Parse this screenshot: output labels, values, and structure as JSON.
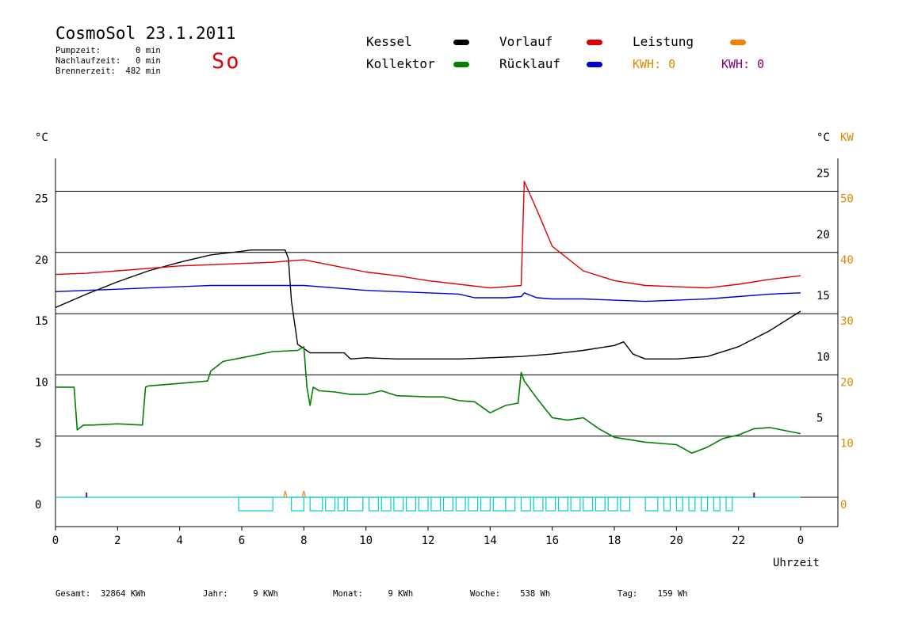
{
  "header": {
    "title": "CosmoSol 23.1.2011",
    "pumpzeit": "Pumpzeit:       0 min",
    "nachlaufzeit": "Nachlaufzeit:   0 min",
    "brennerzeit": "Brennerzeit:  482 min",
    "day": "So"
  },
  "legend": {
    "kessel": "Kessel",
    "kollektor": "Kollektor",
    "vorlauf": "Vorlauf",
    "ruecklauf": "Rücklauf",
    "leistung": "Leistung",
    "kwh1": "KWH: 0",
    "kwh2": "KWH: 0"
  },
  "footer": {
    "gesamt": "Gesamt:  32864 KWh",
    "jahr": "Jahr:     9 KWh",
    "monat": "Monat:     9 KWh",
    "woche": "Woche:    538 Wh",
    "tag": "Tag:    159 Wh"
  },
  "colors": {
    "kessel": "#000000",
    "kollektor": "#008000",
    "vorlauf": "#dd0000",
    "ruecklauf": "#0000cc",
    "leistung": "#f08000",
    "kwh2": "#800080",
    "pump": "#00cccc",
    "axis_right_kw": "#e08800"
  },
  "chart_data": {
    "type": "line",
    "xlabel": "Uhrzeit",
    "ylabel_left": "°C",
    "ylabel_right": "°C",
    "ylabel_right2": "KW",
    "xlim": [
      0,
      24
    ],
    "ylim": [
      -2,
      27.5
    ],
    "x_ticks": [
      "0",
      "2",
      "4",
      "6",
      "8",
      "10",
      "12",
      "14",
      "16",
      "18",
      "20",
      "22",
      "0"
    ],
    "y_ticks_left": [
      "0",
      "5",
      "10",
      "15",
      "20",
      "25"
    ],
    "y_ticks_right": [
      "5",
      "10",
      "15",
      "20",
      "25"
    ],
    "y_ticks_right_kw": [
      "0",
      "10",
      "20",
      "30",
      "40",
      "50"
    ],
    "grid": true,
    "series": [
      {
        "name": "Kessel",
        "color": "#000000",
        "x": [
          0,
          1,
          2,
          3,
          4,
          5,
          6,
          6.3,
          7.4,
          7.5,
          7.6,
          7.8,
          8.2,
          9,
          9.3,
          9.5,
          10,
          11,
          12,
          13,
          14,
          15,
          16,
          17,
          18,
          18.3,
          18.6,
          19,
          20,
          21,
          22,
          23,
          24
        ],
        "y": [
          15.5,
          16.6,
          17.6,
          18.5,
          19.2,
          19.8,
          20.1,
          20.2,
          20.2,
          19.5,
          16,
          12.5,
          11.8,
          11.8,
          11.8,
          11.3,
          11.4,
          11.3,
          11.3,
          11.3,
          11.4,
          11.5,
          11.7,
          12,
          12.4,
          12.7,
          11.7,
          11.3,
          11.3,
          11.5,
          12.3,
          13.6,
          15.2
        ]
      },
      {
        "name": "Vorlauf",
        "color": "#dd0000",
        "x": [
          0,
          1,
          2,
          3,
          4,
          5,
          6,
          7,
          7.5,
          8,
          9,
          10,
          11,
          12,
          13,
          14,
          14.5,
          15,
          15.1,
          15.5,
          16,
          17,
          18,
          19,
          20,
          21,
          22,
          23,
          24
        ],
        "y": [
          18.2,
          18.3,
          18.5,
          18.7,
          18.9,
          19.0,
          19.1,
          19.2,
          19.3,
          19.4,
          18.9,
          18.4,
          18.1,
          17.7,
          17.4,
          17.1,
          17.2,
          17.3,
          25.8,
          23.5,
          20.5,
          18.5,
          17.7,
          17.3,
          17.2,
          17.1,
          17.4,
          17.8,
          18.1
        ]
      },
      {
        "name": "Rücklauf",
        "color": "#0000cc",
        "x": [
          0,
          1,
          2,
          3,
          4,
          5,
          6,
          7,
          8,
          9,
          10,
          11,
          12,
          13,
          13.5,
          14,
          14.5,
          15,
          15.1,
          15.5,
          16,
          17,
          18,
          19,
          20,
          21,
          22,
          23,
          24
        ],
        "y": [
          16.8,
          16.9,
          17.0,
          17.1,
          17.2,
          17.3,
          17.3,
          17.3,
          17.3,
          17.1,
          16.9,
          16.8,
          16.7,
          16.6,
          16.3,
          16.3,
          16.3,
          16.4,
          16.7,
          16.3,
          16.2,
          16.2,
          16.1,
          16.0,
          16.1,
          16.2,
          16.4,
          16.6,
          16.7
        ]
      },
      {
        "name": "Kollektor",
        "color": "#008000",
        "x": [
          0,
          0.6,
          0.7,
          0.9,
          1.2,
          2,
          2.8,
          2.9,
          3,
          4,
          4.9,
          5,
          5.4,
          6,
          7,
          7.8,
          8,
          8.1,
          8.2,
          8.3,
          8.5,
          9,
          9.5,
          10,
          10.5,
          11,
          12,
          12.5,
          13,
          13.5,
          14,
          14.5,
          14.9,
          15,
          15.1,
          15.5,
          16,
          16.5,
          17,
          17.5,
          18,
          19,
          20,
          20.5,
          21,
          21.5,
          22,
          22.5,
          23,
          24
        ],
        "y": [
          9.0,
          9.0,
          5.5,
          5.9,
          5.9,
          6.0,
          5.9,
          9.0,
          9.1,
          9.3,
          9.5,
          10.3,
          11.1,
          11.4,
          11.9,
          12.0,
          12.3,
          9.0,
          7.5,
          9.0,
          8.7,
          8.6,
          8.4,
          8.4,
          8.7,
          8.3,
          8.2,
          8.2,
          7.9,
          7.8,
          6.9,
          7.5,
          7.7,
          10.2,
          9.5,
          8.1,
          6.5,
          6.3,
          6.5,
          5.6,
          4.9,
          4.5,
          4.3,
          3.6,
          4.1,
          4.8,
          5.1,
          5.6,
          5.7,
          5.2
        ]
      }
    ],
    "pump_on_intervals": [
      [
        5.9,
        7.0
      ],
      [
        7.6,
        8.0
      ],
      [
        8.2,
        8.6
      ],
      [
        8.7,
        9.0
      ],
      [
        9.1,
        9.3
      ],
      [
        9.4,
        9.9
      ],
      [
        10.1,
        10.4
      ],
      [
        10.5,
        10.8
      ],
      [
        10.9,
        11.2
      ],
      [
        11.3,
        11.6
      ],
      [
        11.7,
        12.0
      ],
      [
        12.1,
        12.4
      ],
      [
        12.5,
        12.8
      ],
      [
        12.9,
        13.2
      ],
      [
        13.3,
        13.6
      ],
      [
        13.7,
        14.0
      ],
      [
        14.1,
        14.5
      ],
      [
        14.5,
        14.8
      ],
      [
        15.0,
        15.3
      ],
      [
        15.4,
        15.7
      ],
      [
        15.8,
        16.1
      ],
      [
        16.2,
        16.5
      ],
      [
        16.6,
        16.9
      ],
      [
        17.0,
        17.3
      ],
      [
        17.4,
        17.7
      ],
      [
        17.8,
        18.1
      ],
      [
        18.2,
        18.5
      ],
      [
        19.0,
        19.4
      ],
      [
        19.6,
        19.8
      ],
      [
        20.0,
        20.2
      ],
      [
        20.4,
        20.6
      ],
      [
        20.8,
        21.0
      ],
      [
        21.2,
        21.4
      ],
      [
        21.6,
        21.8
      ]
    ],
    "leistung_pulses_x": [
      7.4,
      8.0
    ],
    "kwh2_marks_x": [
      1.0,
      22.5
    ]
  }
}
